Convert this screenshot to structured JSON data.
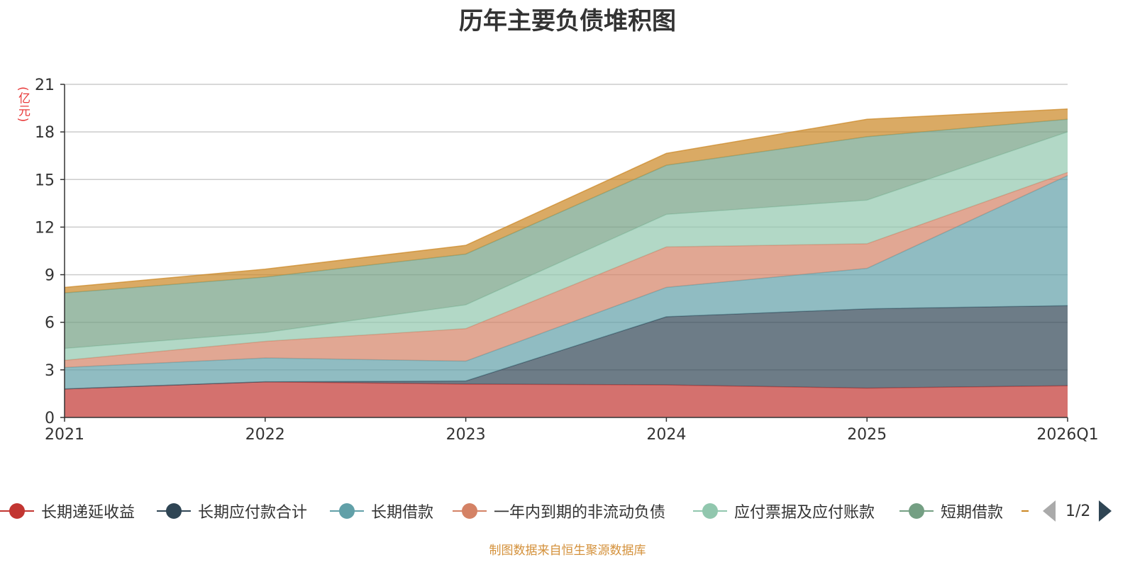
{
  "title": "历年主要负债堆积图",
  "source": "制图数据来自恒生聚源数据库",
  "colors": {
    "axis": "#333333",
    "grid": "#cccccc",
    "unit": "#e83b3b",
    "source": "#d4913b"
  },
  "legend": {
    "items": [
      {
        "label": "长期递延收益",
        "color": "#c23531"
      },
      {
        "label": "长期应付款合计",
        "color": "#2f4554"
      },
      {
        "label": "长期借款",
        "color": "#61a0a8"
      },
      {
        "label": "一年内到期的非流动负债",
        "color": "#d48265"
      },
      {
        "label": "应付票据及应付账款",
        "color": "#91c7ae"
      },
      {
        "label": "短期借款",
        "color": "#749f83"
      },
      {
        "label": "",
        "color": "#ca8622"
      }
    ],
    "pager": "1/2"
  },
  "chart_data": {
    "type": "area",
    "stacked": true,
    "title": "历年主要负债堆积图",
    "ylabel": "(亿元)",
    "categories": [
      "2021",
      "2022",
      "2023",
      "2024",
      "2025",
      "2026Q1"
    ],
    "ylim": [
      0,
      21
    ],
    "yticks": [
      0,
      3,
      6,
      9,
      12,
      15,
      18,
      21
    ],
    "grid": true,
    "legend_position": "bottom",
    "series": [
      {
        "name": "长期递延收益",
        "color": "#c23531",
        "values": [
          1.8,
          2.25,
          2.1,
          2.05,
          1.85,
          2.0
        ]
      },
      {
        "name": "长期应付款合计",
        "color": "#2f4554",
        "values": [
          0,
          0,
          0.2,
          4.3,
          5.0,
          5.05
        ]
      },
      {
        "name": "长期借款",
        "color": "#61a0a8",
        "values": [
          1.35,
          1.5,
          1.25,
          1.85,
          2.55,
          8.2
        ]
      },
      {
        "name": "一年内到期的非流动负债",
        "color": "#d48265",
        "values": [
          0.45,
          1.05,
          2.05,
          2.55,
          1.55,
          0.2
        ]
      },
      {
        "name": "应付票据及应付账款",
        "color": "#91c7ae",
        "values": [
          0.75,
          0.55,
          1.5,
          2.05,
          2.75,
          2.55
        ]
      },
      {
        "name": "短期借款",
        "color": "#749f83",
        "values": [
          3.5,
          3.5,
          3.2,
          3.1,
          4.0,
          0.8
        ]
      },
      {
        "color": "#ca8622",
        "values": [
          0.35,
          0.5,
          0.55,
          0.75,
          1.1,
          0.65
        ]
      }
    ]
  }
}
